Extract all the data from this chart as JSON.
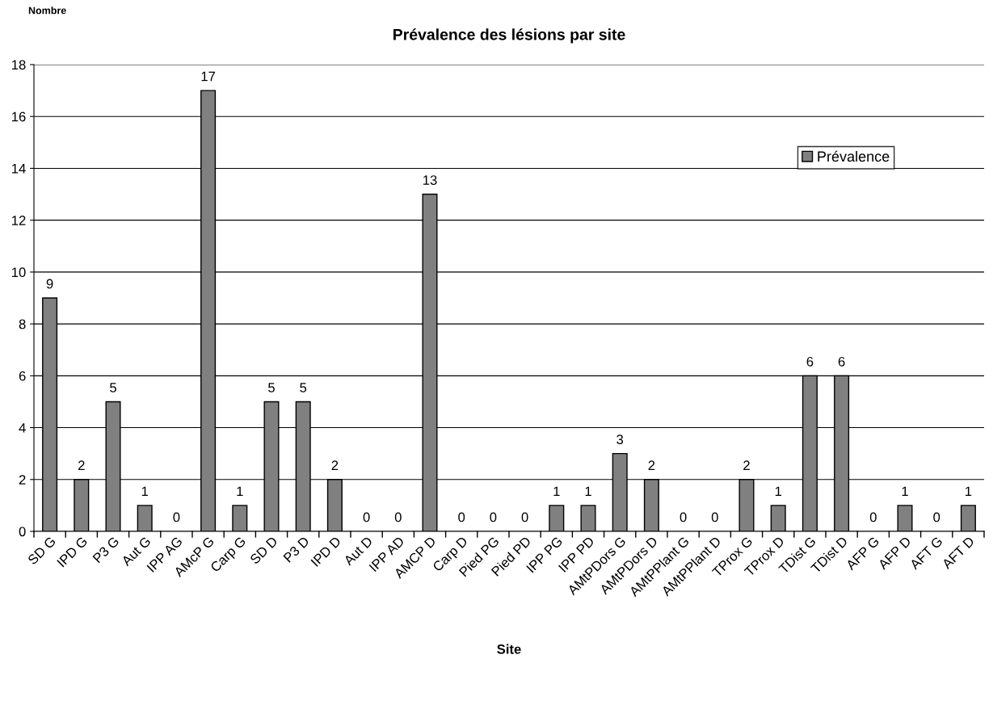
{
  "chart_data": {
    "type": "bar",
    "title": "Prévalence des lésions par site",
    "xlabel": "Site",
    "ylabel": "Nombre",
    "categories": [
      "SD G",
      "IPD G",
      "P3 G",
      "Aut G",
      "IPP AG",
      "AMcP G",
      "Carp G",
      "SD D",
      "P3 D",
      "IPD D",
      "Aut D",
      "IPP AD",
      "AMCP D",
      "Carp D",
      "Pied PG",
      "Pied PD",
      "IPP PG",
      "IPP PD",
      "AMtPDors G",
      "AMtPDors D",
      "AMtPPlant G",
      "AMtPPlant D",
      "TProx G",
      "TProx D",
      "TDist G",
      "TDist D",
      "AFP G",
      "AFP D",
      "AFT G",
      "AFT D"
    ],
    "series": [
      {
        "name": "Prévalence",
        "color": "#808080",
        "values": [
          9,
          2,
          5,
          1,
          0,
          17,
          1,
          5,
          5,
          2,
          0,
          0,
          13,
          0,
          0,
          0,
          1,
          1,
          3,
          2,
          0,
          0,
          2,
          1,
          6,
          6,
          0,
          1,
          0,
          1
        ]
      }
    ],
    "ylim": [
      0,
      18
    ],
    "yticks": [
      0,
      2,
      4,
      6,
      8,
      10,
      12,
      14,
      16,
      18
    ],
    "grid": "y",
    "legend": "top right",
    "data_labels": true
  }
}
